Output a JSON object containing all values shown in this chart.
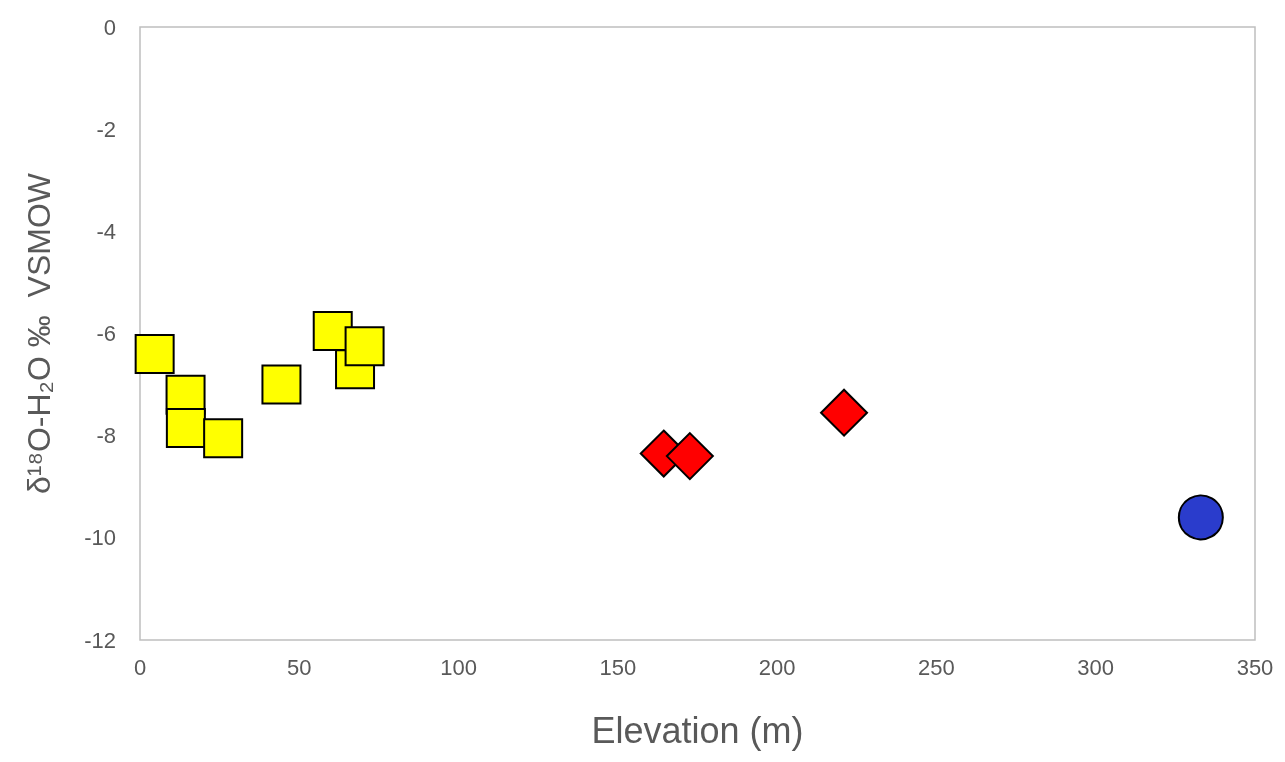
{
  "chart_data": {
    "type": "scatter",
    "xlabel": "Elevation (m)",
    "ylabel": "δ¹⁸O-H₂O ‰  VSMOW",
    "xlim": [
      0,
      350
    ],
    "xticks": [
      0,
      50,
      100,
      150,
      200,
      250,
      300,
      350
    ],
    "ylim": [
      -12,
      0
    ],
    "yticks": [
      -12,
      -10,
      -8,
      -6,
      -4,
      -2,
      0
    ],
    "grid": false,
    "series": [
      {
        "color": "#ffff00",
        "marker": "square",
        "x": [
          4.6,
          14.3,
          14.4,
          26.1,
          44.4,
          60.5,
          67.5,
          70.5
        ],
        "values": [
          -6.4,
          -7.2,
          -7.85,
          -8.05,
          -7.0,
          -5.95,
          -6.7,
          -6.25
        ]
      },
      {
        "color": "#ff0000",
        "marker": "diamond",
        "x": [
          164.4,
          172.6,
          221.0
        ],
        "values": [
          -8.35,
          -8.4,
          -7.55
        ]
      },
      {
        "color": "#2a3ccc",
        "marker": "circle",
        "x": [
          333.0
        ],
        "values": [
          -9.6
        ]
      }
    ]
  }
}
